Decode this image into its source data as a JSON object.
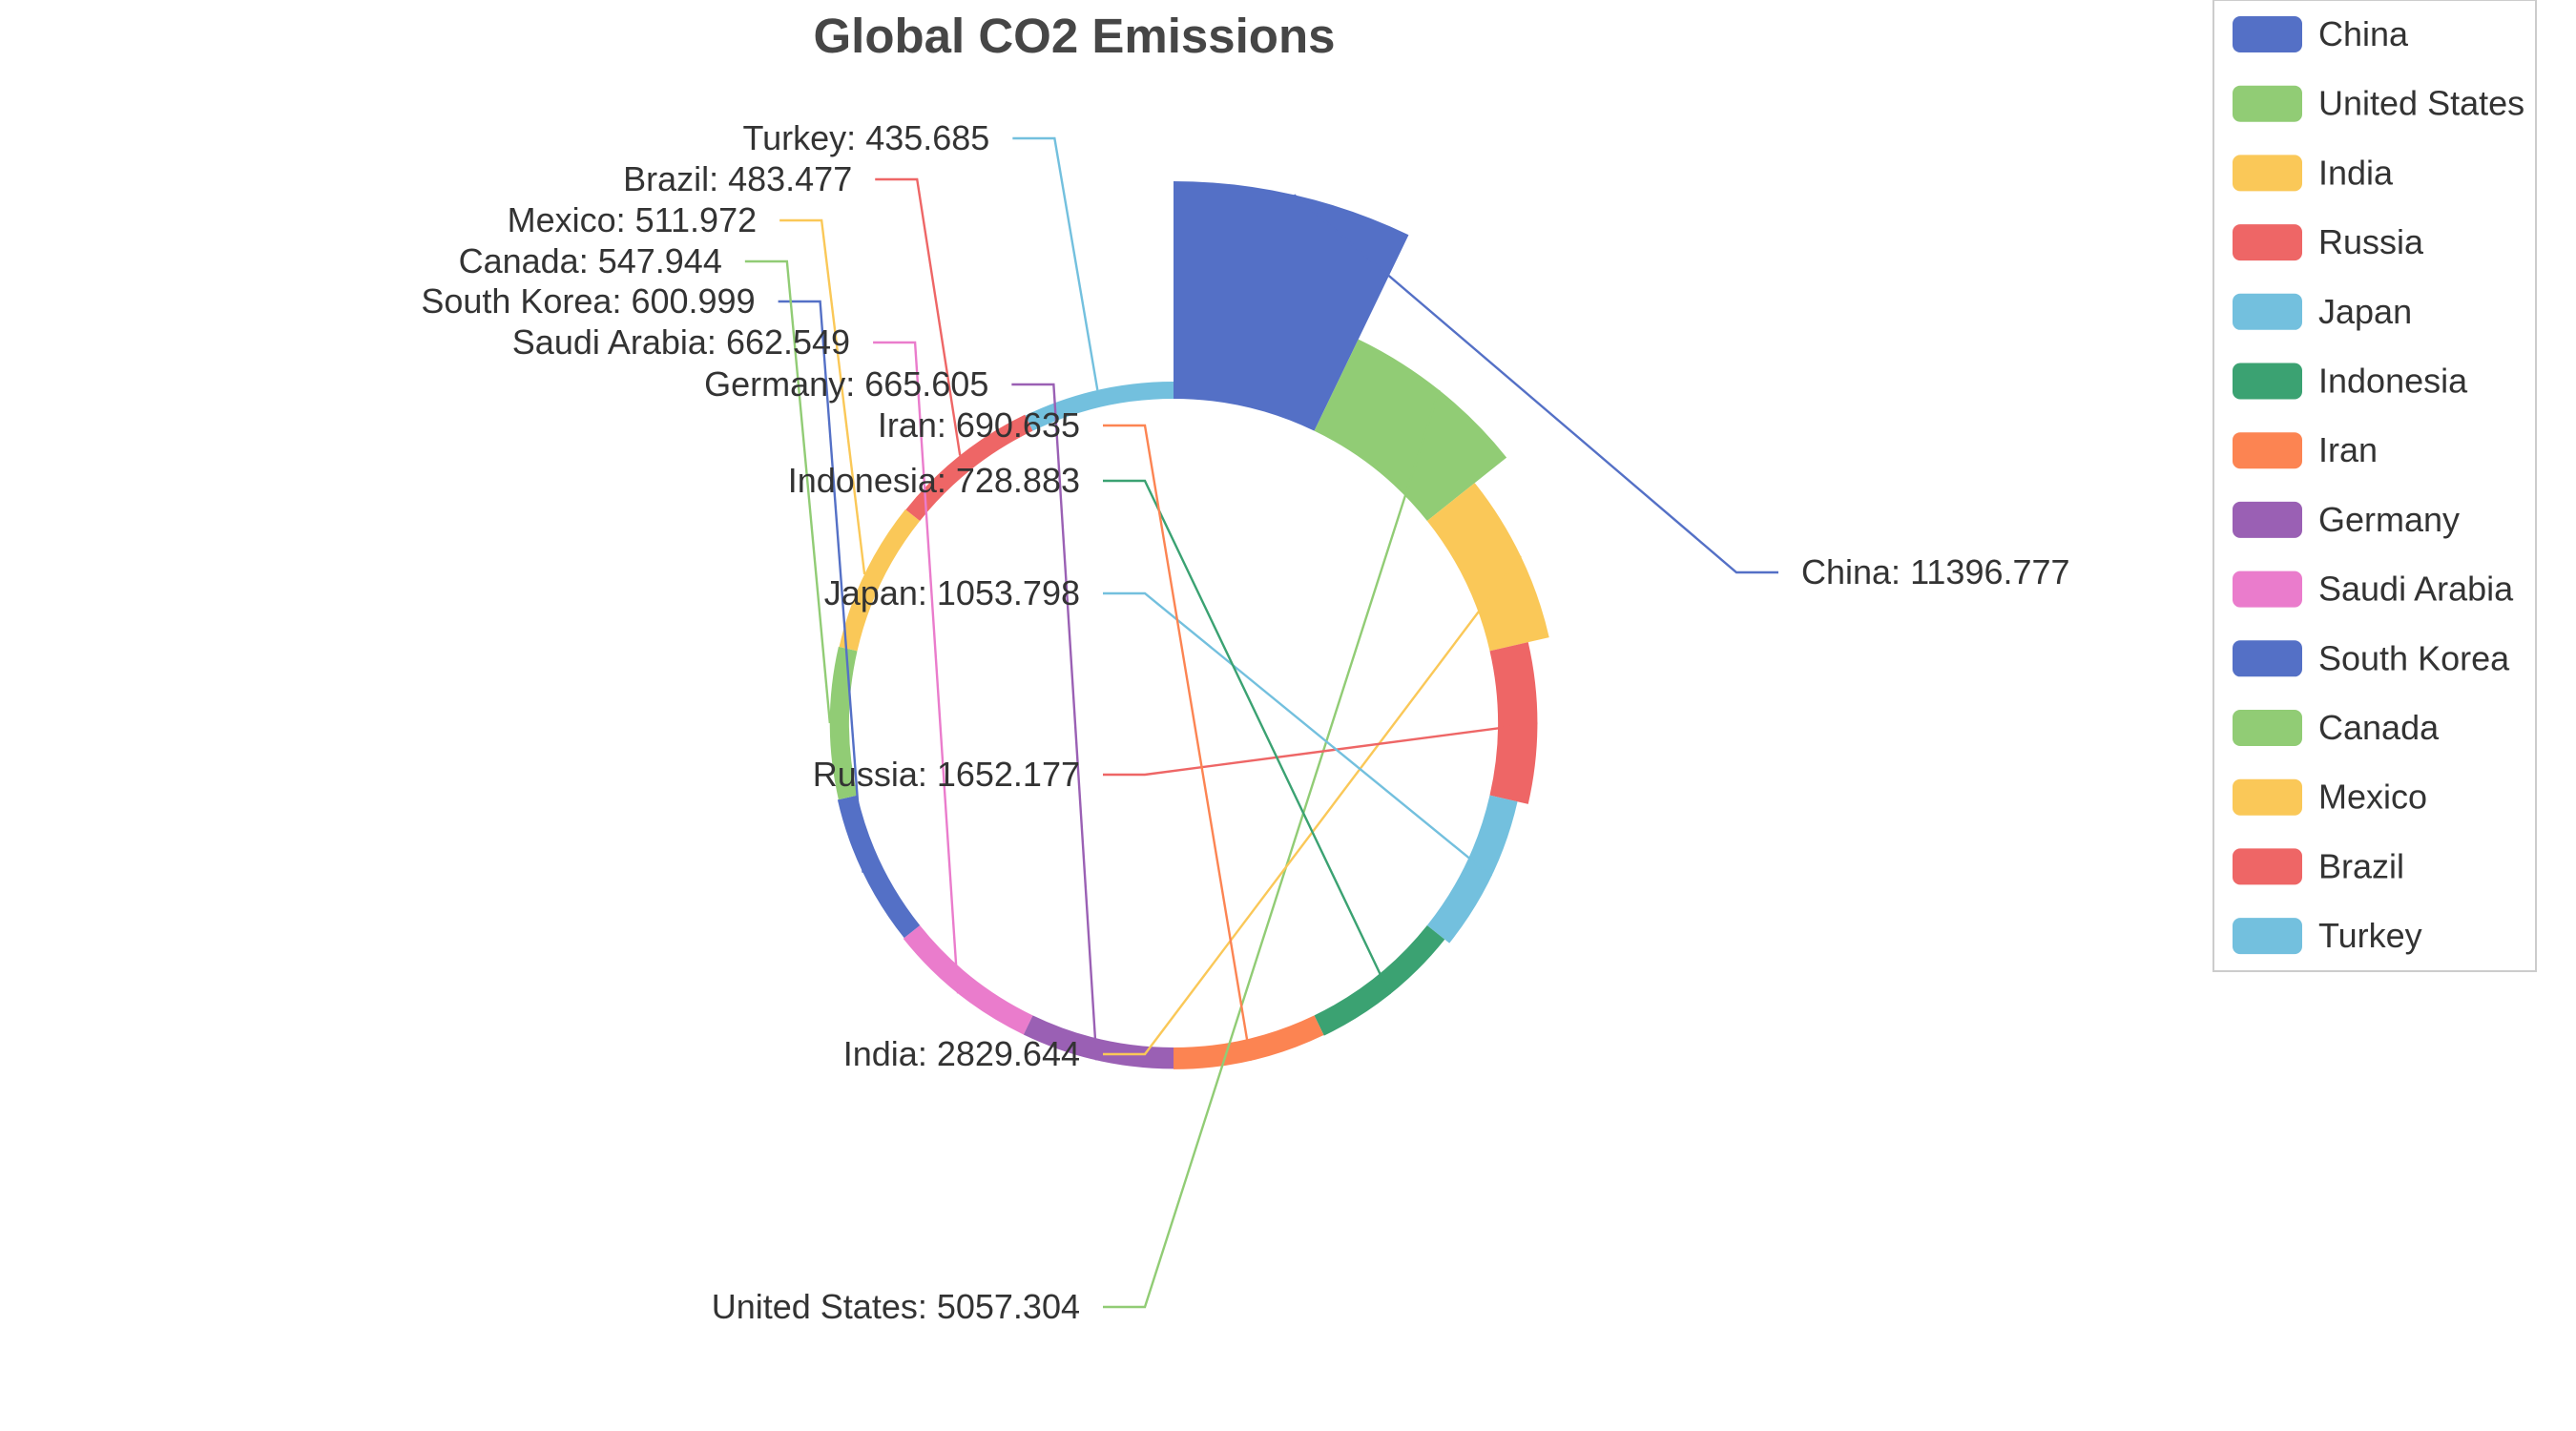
{
  "chart_data": {
    "type": "pie",
    "variant": "rose-donut",
    "title": "Global CO2 Emissions",
    "legend_position": "top-right",
    "slices": [
      {
        "name": "China",
        "value": 11396.777,
        "label": "China: 11396.777",
        "color": "#5470c6"
      },
      {
        "name": "United States",
        "value": 5057.304,
        "label": "United States: 5057.304",
        "color": "#91cc75"
      },
      {
        "name": "India",
        "value": 2829.644,
        "label": "India: 2829.644",
        "color": "#fac858"
      },
      {
        "name": "Russia",
        "value": 1652.177,
        "label": "Russia: 1652.177",
        "color": "#ee6666"
      },
      {
        "name": "Japan",
        "value": 1053.798,
        "label": "Japan: 1053.798",
        "color": "#73c0de"
      },
      {
        "name": "Indonesia",
        "value": 728.883,
        "label": "Indonesia: 728.883",
        "color": "#3ba272"
      },
      {
        "name": "Iran",
        "value": 690.635,
        "label": "Iran: 690.635",
        "color": "#fc8452"
      },
      {
        "name": "Germany",
        "value": 665.605,
        "label": "Germany: 665.605",
        "color": "#9a60b4"
      },
      {
        "name": "Saudi Arabia",
        "value": 662.549,
        "label": "Saudi Arabia: 662.549",
        "color": "#ea7ccc"
      },
      {
        "name": "South Korea",
        "value": 600.999,
        "label": "South Korea: 600.999",
        "color": "#5470c6"
      },
      {
        "name": "Canada",
        "value": 547.944,
        "label": "Canada: 547.944",
        "color": "#91cc75"
      },
      {
        "name": "Mexico",
        "value": 511.972,
        "label": "Mexico: 511.972",
        "color": "#fac858"
      },
      {
        "name": "Brazil",
        "value": 483.477,
        "label": "Brazil: 483.477",
        "color": "#ee6666"
      },
      {
        "name": "Turkey",
        "value": 435.685,
        "label": "Turkey: 435.685",
        "color": "#73c0de"
      }
    ]
  }
}
